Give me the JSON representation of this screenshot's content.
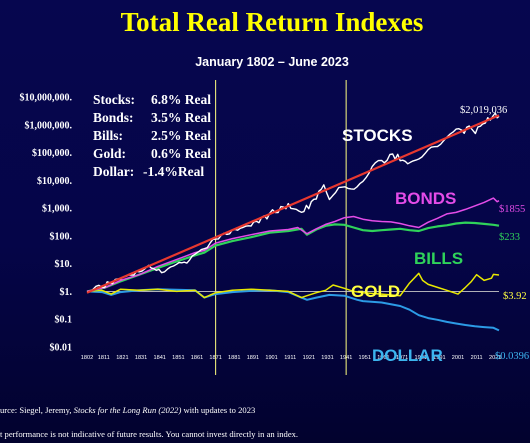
{
  "title": "Total Real Return Indexes",
  "subtitle": "January 1802 – June 2023",
  "rates": [
    {
      "label": "Stocks:",
      "value": "6.8% Real"
    },
    {
      "label": "Bonds:",
      "value": "3.5% Real"
    },
    {
      "label": "Bills:",
      "value": "2.5% Real"
    },
    {
      "label": "Gold:",
      "value": "0.6% Real"
    },
    {
      "label": "Dollar:",
      "value": "-1.4%Real"
    }
  ],
  "footer": {
    "source_prefix": "urce: Siegel, Jeremy, ",
    "source_book": "Stocks for the Long Run (2022)",
    "source_suffix": " with updates to 2023",
    "disclaimer": "t performance is not indicative of future results. You cannot invest directly in an index."
  },
  "colors": {
    "background": "#06064f",
    "title": "#ffff00",
    "stocks": "#ffffff",
    "trend": "#e8382f",
    "bonds": "#e44ce8",
    "bills": "#2fd35a",
    "gold": "#e8e800",
    "dollar": "#2c9be6",
    "stocks_label": "#ffffff",
    "bonds_label": "#e44ce8",
    "bills_label": "#2fd35a",
    "gold_label": "#ffff40",
    "dollar_label": "#3cb4ee",
    "vlines": "#ffff80"
  },
  "chart_data": {
    "type": "line",
    "title": "Total Real Return Indexes",
    "subtitle": "January 1802 – June 2023",
    "y_scale": "log",
    "ylim": [
      0.01,
      10000000
    ],
    "xlim": [
      1802,
      2023
    ],
    "y_ticks": [
      {
        "value": 10000000,
        "label": "$10,000,000."
      },
      {
        "value": 1000000,
        "label": "$1,000,000."
      },
      {
        "value": 100000,
        "label": "$100,000."
      },
      {
        "value": 10000,
        "label": "$10,000."
      },
      {
        "value": 1000,
        "label": "$1,000."
      },
      {
        "value": 100,
        "label": "$100."
      },
      {
        "value": 10,
        "label": "$10."
      },
      {
        "value": 1,
        "label": "$1."
      },
      {
        "value": 0.1,
        "label": "$0.1"
      },
      {
        "value": 0.01,
        "label": "$0.01"
      }
    ],
    "x_ticks": [
      "1802",
      "1811",
      "1821",
      "1831",
      "1841",
      "1851",
      "1861",
      "1871",
      "1881",
      "1891",
      "1901",
      "1911",
      "1921",
      "1931",
      "1941",
      "1951",
      "1961",
      "1971",
      "1981",
      "1991",
      "2001",
      "2011",
      "2021"
    ],
    "vertical_lines": [
      1871,
      1941
    ],
    "grid": false,
    "baseline": 1,
    "series": [
      {
        "key": "stocks",
        "name": "STOCKS",
        "end_label": "$2,019,036",
        "points": [
          [
            1802,
            1
          ],
          [
            1810,
            1.5
          ],
          [
            1820,
            3
          ],
          [
            1830,
            5
          ],
          [
            1835,
            8
          ],
          [
            1842,
            5
          ],
          [
            1850,
            10
          ],
          [
            1857,
            12
          ],
          [
            1860,
            25
          ],
          [
            1865,
            35
          ],
          [
            1871,
            80
          ],
          [
            1880,
            150
          ],
          [
            1890,
            250
          ],
          [
            1900,
            600
          ],
          [
            1906,
            1000
          ],
          [
            1910,
            1200
          ],
          [
            1917,
            700
          ],
          [
            1921,
            1200
          ],
          [
            1925,
            2500
          ],
          [
            1929,
            7000
          ],
          [
            1932,
            2000
          ],
          [
            1937,
            6000
          ],
          [
            1942,
            4000
          ],
          [
            1950,
            9000
          ],
          [
            1955,
            30000
          ],
          [
            1960,
            45000
          ],
          [
            1966,
            80000
          ],
          [
            1970,
            60000
          ],
          [
            1974,
            40000
          ],
          [
            1980,
            60000
          ],
          [
            1985,
            100000
          ],
          [
            1990,
            180000
          ],
          [
            1995,
            350000
          ],
          [
            2000,
            900000
          ],
          [
            2003,
            500000
          ],
          [
            2007,
            900000
          ],
          [
            2009,
            500000
          ],
          [
            2013,
            900000
          ],
          [
            2017,
            1500000
          ],
          [
            2021,
            2300000
          ],
          [
            2022,
            1700000
          ],
          [
            2023,
            2019036
          ]
        ]
      },
      {
        "key": "trend",
        "name": "",
        "points": [
          [
            1802,
            0.9
          ],
          [
            2023,
            2200000
          ]
        ]
      },
      {
        "key": "bonds",
        "name": "BONDS",
        "end_label": "$1855",
        "points": [
          [
            1802,
            1
          ],
          [
            1812,
            1.4
          ],
          [
            1820,
            2.5
          ],
          [
            1830,
            4
          ],
          [
            1840,
            8
          ],
          [
            1850,
            14
          ],
          [
            1860,
            25
          ],
          [
            1865,
            30
          ],
          [
            1871,
            55
          ],
          [
            1880,
            80
          ],
          [
            1890,
            110
          ],
          [
            1900,
            150
          ],
          [
            1910,
            170
          ],
          [
            1915,
            200
          ],
          [
            1920,
            120
          ],
          [
            1925,
            180
          ],
          [
            1930,
            260
          ],
          [
            1935,
            330
          ],
          [
            1940,
            450
          ],
          [
            1945,
            500
          ],
          [
            1950,
            400
          ],
          [
            1955,
            350
          ],
          [
            1960,
            330
          ],
          [
            1965,
            320
          ],
          [
            1970,
            280
          ],
          [
            1975,
            230
          ],
          [
            1980,
            200
          ],
          [
            1985,
            310
          ],
          [
            1990,
            430
          ],
          [
            1995,
            620
          ],
          [
            2000,
            700
          ],
          [
            2005,
            900
          ],
          [
            2010,
            1200
          ],
          [
            2015,
            1600
          ],
          [
            2020,
            2300
          ],
          [
            2022,
            1700
          ],
          [
            2023,
            1855
          ]
        ]
      },
      {
        "key": "bills",
        "name": "BILLS",
        "end_label": "$233",
        "points": [
          [
            1802,
            1
          ],
          [
            1812,
            1.4
          ],
          [
            1820,
            2.3
          ],
          [
            1830,
            4
          ],
          [
            1840,
            7
          ],
          [
            1850,
            12
          ],
          [
            1860,
            20
          ],
          [
            1865,
            25
          ],
          [
            1871,
            45
          ],
          [
            1880,
            65
          ],
          [
            1890,
            90
          ],
          [
            1900,
            130
          ],
          [
            1910,
            150
          ],
          [
            1917,
            180
          ],
          [
            1920,
            110
          ],
          [
            1925,
            170
          ],
          [
            1930,
            230
          ],
          [
            1935,
            260
          ],
          [
            1940,
            250
          ],
          [
            1945,
            200
          ],
          [
            1950,
            160
          ],
          [
            1955,
            150
          ],
          [
            1960,
            160
          ],
          [
            1965,
            170
          ],
          [
            1970,
            180
          ],
          [
            1975,
            160
          ],
          [
            1980,
            150
          ],
          [
            1985,
            190
          ],
          [
            1990,
            220
          ],
          [
            1995,
            240
          ],
          [
            2000,
            280
          ],
          [
            2005,
            300
          ],
          [
            2010,
            290
          ],
          [
            2015,
            270
          ],
          [
            2020,
            250
          ],
          [
            2023,
            233
          ]
        ]
      },
      {
        "key": "gold",
        "name": "GOLD",
        "end_label": "$3.92",
        "points": [
          [
            1802,
            1
          ],
          [
            1810,
            1.1
          ],
          [
            1815,
            0.8
          ],
          [
            1820,
            1.2
          ],
          [
            1830,
            1.1
          ],
          [
            1840,
            1.2
          ],
          [
            1850,
            1.0
          ],
          [
            1860,
            1.1
          ],
          [
            1865,
            0.6
          ],
          [
            1871,
            0.9
          ],
          [
            1880,
            1.1
          ],
          [
            1890,
            1.2
          ],
          [
            1900,
            1.1
          ],
          [
            1910,
            1.0
          ],
          [
            1917,
            0.6
          ],
          [
            1920,
            0.7
          ],
          [
            1925,
            0.9
          ],
          [
            1930,
            1.1
          ],
          [
            1934,
            1.7
          ],
          [
            1940,
            1.3
          ],
          [
            1945,
            1.0
          ],
          [
            1950,
            0.9
          ],
          [
            1960,
            0.8
          ],
          [
            1970,
            0.7
          ],
          [
            1975,
            2.0
          ],
          [
            1980,
            4.5
          ],
          [
            1982,
            2.5
          ],
          [
            1985,
            1.8
          ],
          [
            1990,
            1.4
          ],
          [
            1995,
            1.1
          ],
          [
            2001,
            0.8
          ],
          [
            2005,
            1.4
          ],
          [
            2008,
            2.2
          ],
          [
            2011,
            4.0
          ],
          [
            2015,
            2.5
          ],
          [
            2019,
            3.0
          ],
          [
            2020,
            4.1
          ],
          [
            2023,
            3.92
          ]
        ]
      },
      {
        "key": "dollar",
        "name": "DOLLAR",
        "end_label": "$0.0396",
        "points": [
          [
            1802,
            1
          ],
          [
            1810,
            0.95
          ],
          [
            1815,
            0.75
          ],
          [
            1820,
            0.95
          ],
          [
            1830,
            1.1
          ],
          [
            1840,
            1.2
          ],
          [
            1850,
            1.15
          ],
          [
            1860,
            1.1
          ],
          [
            1865,
            0.6
          ],
          [
            1871,
            0.8
          ],
          [
            1880,
            0.95
          ],
          [
            1890,
            1.05
          ],
          [
            1900,
            1.1
          ],
          [
            1910,
            0.95
          ],
          [
            1917,
            0.6
          ],
          [
            1920,
            0.5
          ],
          [
            1925,
            0.6
          ],
          [
            1932,
            0.75
          ],
          [
            1940,
            0.7
          ],
          [
            1947,
            0.5
          ],
          [
            1950,
            0.45
          ],
          [
            1960,
            0.4
          ],
          [
            1970,
            0.3
          ],
          [
            1975,
            0.22
          ],
          [
            1980,
            0.14
          ],
          [
            1985,
            0.11
          ],
          [
            1990,
            0.095
          ],
          [
            1995,
            0.08
          ],
          [
            2000,
            0.07
          ],
          [
            2005,
            0.062
          ],
          [
            2010,
            0.056
          ],
          [
            2015,
            0.052
          ],
          [
            2020,
            0.049
          ],
          [
            2023,
            0.0396
          ]
        ]
      }
    ]
  }
}
